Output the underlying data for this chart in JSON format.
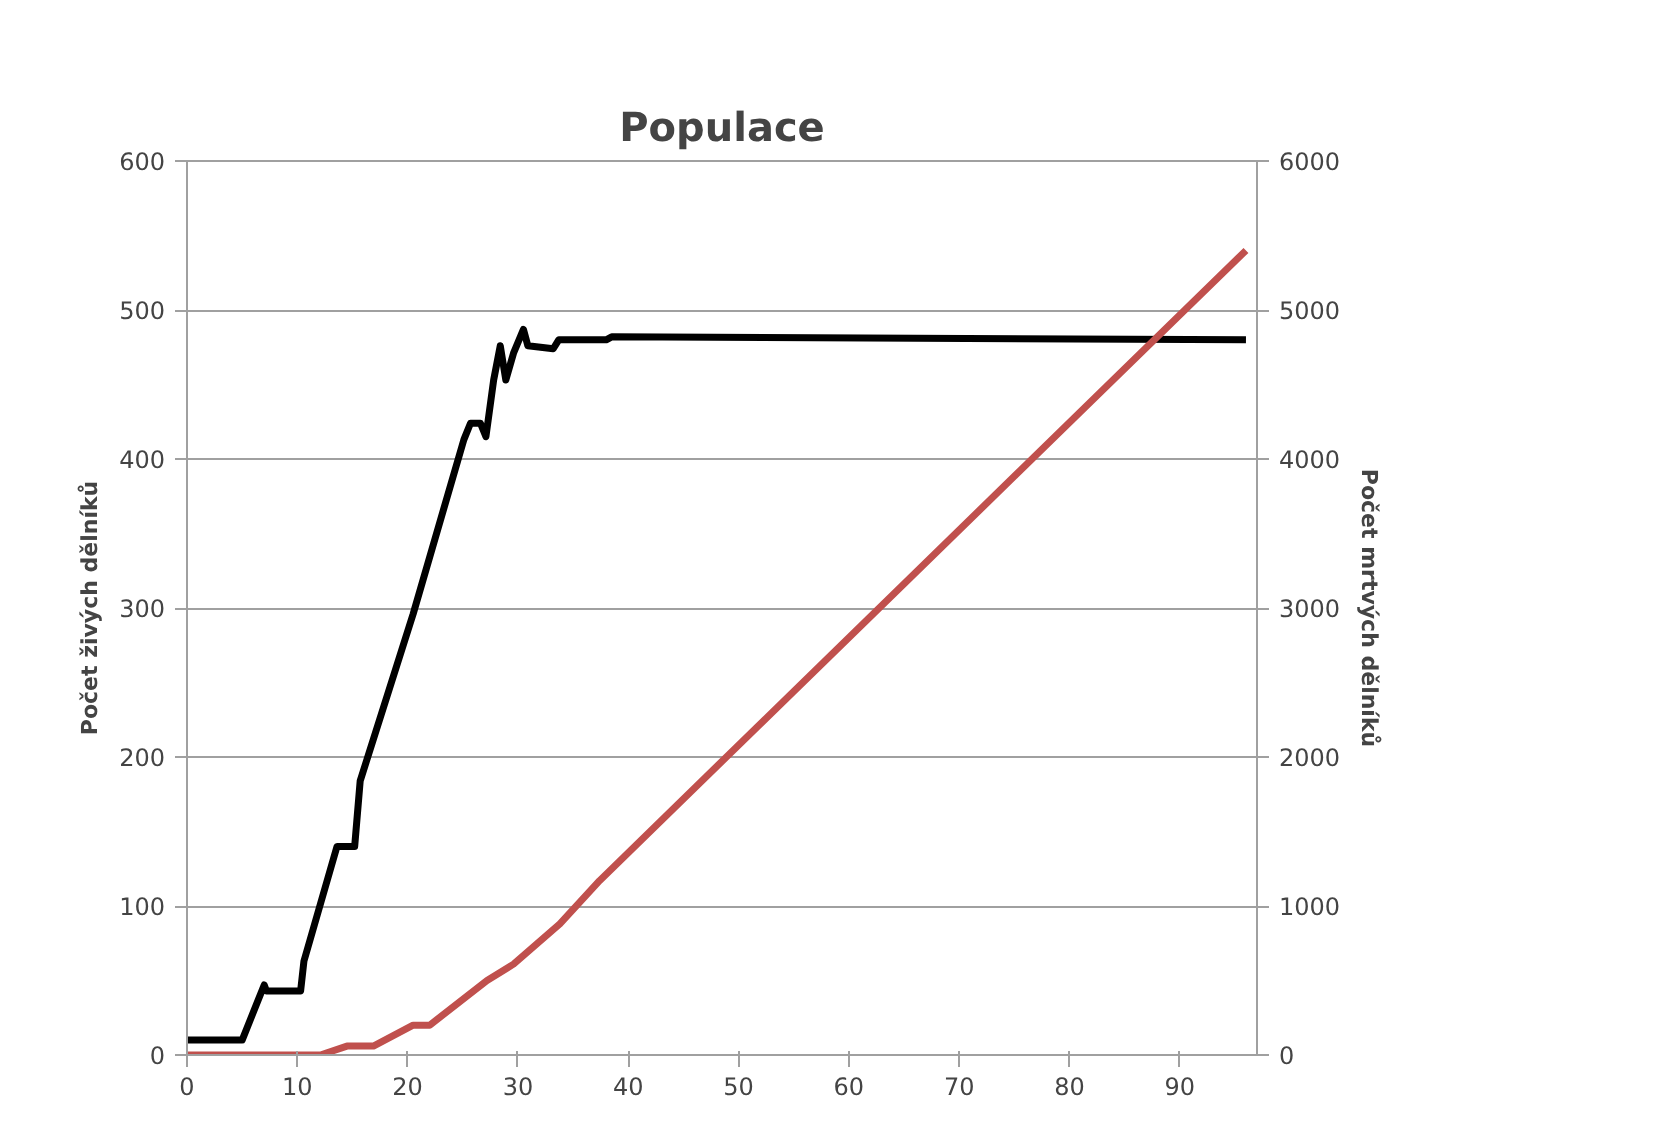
{
  "chart_data": {
    "type": "line",
    "title": "Populace",
    "ylabel": "Počet živých dělníků",
    "y2label": "Počet mrtvých dělníků",
    "xlim": [
      0,
      97
    ],
    "xticks": [
      0,
      10,
      20,
      30,
      40,
      50,
      60,
      70,
      80,
      90
    ],
    "ylim": [
      0,
      600
    ],
    "yticks": [
      0,
      100,
      200,
      300,
      400,
      500,
      600
    ],
    "y2lim": [
      0,
      6000
    ],
    "y2ticks": [
      0,
      1000,
      2000,
      3000,
      4000,
      5000,
      6000
    ],
    "grid": "y",
    "marker": "none",
    "line_style": "solid",
    "series": [
      {
        "color": "#000000",
        "x": [
          0,
          5,
          7,
          7.2,
          10.3,
          10.6,
          13.6,
          15.2,
          15.7,
          20.5,
          25.1,
          25.7,
          26.6,
          27.1,
          27.8,
          28.4,
          28.9,
          29.6,
          30.5,
          30.9,
          33.2,
          33.7,
          38,
          38.5,
          96
        ],
        "values": [
          10,
          10,
          47,
          43,
          43,
          63,
          140,
          140,
          184,
          296,
          413,
          424,
          424,
          415,
          453,
          476,
          453,
          471,
          487,
          476,
          474,
          480,
          480,
          482,
          480
        ]
      },
      {
        "color": "#c0504d",
        "axis": "y2",
        "x": [
          0,
          12.1,
          14.5,
          16.9,
          20.5,
          22,
          27.2,
          29.6,
          33.8,
          37.4,
          48.9,
          96
        ],
        "values": [
          0,
          0,
          60,
          60,
          200,
          200,
          500,
          610,
          880,
          1170,
          2000,
          5400
        ]
      }
    ]
  }
}
